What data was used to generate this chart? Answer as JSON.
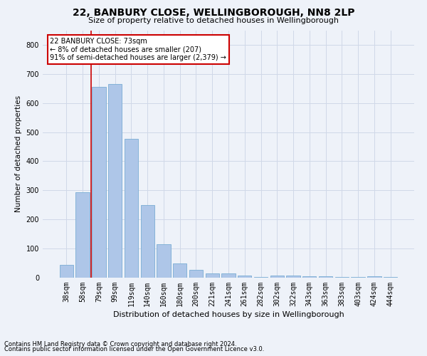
{
  "title": "22, BANBURY CLOSE, WELLINGBOROUGH, NN8 2LP",
  "subtitle": "Size of property relative to detached houses in Wellingborough",
  "xlabel": "Distribution of detached houses by size in Wellingborough",
  "ylabel": "Number of detached properties",
  "footnote1": "Contains HM Land Registry data © Crown copyright and database right 2024.",
  "footnote2": "Contains public sector information licensed under the Open Government Licence v3.0.",
  "categories": [
    "38sqm",
    "58sqm",
    "79sqm",
    "99sqm",
    "119sqm",
    "140sqm",
    "160sqm",
    "180sqm",
    "200sqm",
    "221sqm",
    "241sqm",
    "261sqm",
    "282sqm",
    "302sqm",
    "322sqm",
    "343sqm",
    "363sqm",
    "383sqm",
    "403sqm",
    "424sqm",
    "444sqm"
  ],
  "values": [
    45,
    293,
    655,
    665,
    478,
    250,
    115,
    50,
    26,
    14,
    14,
    8,
    2,
    8,
    8,
    5,
    5,
    2,
    2,
    6,
    2
  ],
  "bar_color": "#aec6e8",
  "bar_edge_color": "#7aadd4",
  "grid_color": "#d0d8e8",
  "vline_color": "#cc0000",
  "annotation_text": "22 BANBURY CLOSE: 73sqm\n← 8% of detached houses are smaller (207)\n91% of semi-detached houses are larger (2,379) →",
  "annotation_box_color": "#ffffff",
  "annotation_box_edge": "#cc0000",
  "ylim": [
    0,
    850
  ],
  "yticks": [
    0,
    100,
    200,
    300,
    400,
    500,
    600,
    700,
    800
  ],
  "bg_color": "#eef2f9",
  "plot_bg_color": "#eef2f9",
  "title_fontsize": 10,
  "subtitle_fontsize": 8,
  "xlabel_fontsize": 8,
  "ylabel_fontsize": 7.5,
  "tick_fontsize": 7,
  "annotation_fontsize": 7,
  "footnote_fontsize": 6
}
